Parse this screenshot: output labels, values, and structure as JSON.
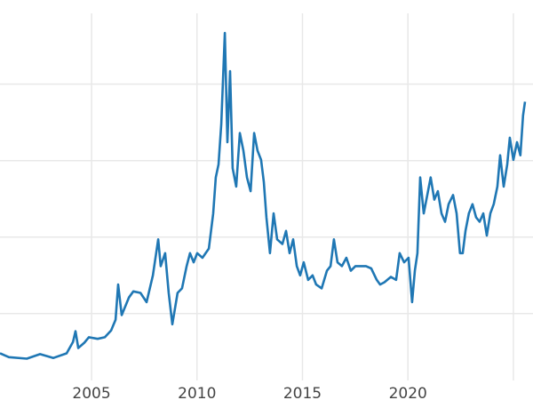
{
  "chart_data": {
    "type": "line",
    "title": "",
    "xlabel": "",
    "ylabel": "",
    "xlim": [
      2000.66,
      2025.93
    ],
    "ylim": [
      -1.3,
      51.0
    ],
    "grid": true,
    "legend": "none",
    "x_ticks": [
      2005,
      2010,
      2015,
      2020,
      2025
    ],
    "x_tick_labels": [
      "2005",
      "2010",
      "2015",
      "2020",
      ""
    ],
    "y_gridlines": [
      10,
      20,
      30,
      40
    ],
    "line_color": "#1f77b4",
    "grid_color": "#e8e8e8",
    "series": [
      {
        "x": [
          2000.66,
          2001.08,
          2001.93,
          2002.56,
          2003.19,
          2003.82,
          2004.12,
          2004.24,
          2004.37,
          2004.66,
          2004.87,
          2005.29,
          2005.63,
          2005.93,
          2006.14,
          2006.26,
          2006.43,
          2006.77,
          2006.98,
          2007.32,
          2007.61,
          2007.91,
          2008.16,
          2008.28,
          2008.49,
          2008.66,
          2008.83,
          2009.08,
          2009.29,
          2009.51,
          2009.67,
          2009.84,
          2010.01,
          2010.26,
          2010.56,
          2010.77,
          2010.89,
          2011.02,
          2011.15,
          2011.32,
          2011.44,
          2011.57,
          2011.69,
          2011.86,
          2012.03,
          2012.2,
          2012.37,
          2012.54,
          2012.71,
          2012.87,
          2013.04,
          2013.17,
          2013.29,
          2013.46,
          2013.63,
          2013.8,
          2014.05,
          2014.22,
          2014.39,
          2014.56,
          2014.73,
          2014.89,
          2015.06,
          2015.27,
          2015.48,
          2015.65,
          2015.91,
          2016.16,
          2016.33,
          2016.49,
          2016.66,
          2016.87,
          2017.08,
          2017.29,
          2017.51,
          2017.76,
          2018.01,
          2018.26,
          2018.52,
          2018.68,
          2018.89,
          2019.19,
          2019.44,
          2019.61,
          2019.82,
          2020.03,
          2020.2,
          2020.33,
          2020.45,
          2020.58,
          2020.75,
          2020.92,
          2021.08,
          2021.25,
          2021.42,
          2021.59,
          2021.76,
          2021.93,
          2022.14,
          2022.31,
          2022.47,
          2022.6,
          2022.73,
          2022.89,
          2023.06,
          2023.23,
          2023.4,
          2023.57,
          2023.74,
          2023.91,
          2024.07,
          2024.24,
          2024.37,
          2024.54,
          2024.71,
          2024.83,
          2025.0,
          2025.17,
          2025.33,
          2025.46,
          2025.55
        ],
        "y": [
          4.8,
          4.3,
          4.1,
          4.7,
          4.2,
          4.8,
          6.3,
          7.7,
          5.5,
          6.2,
          6.9,
          6.7,
          6.9,
          7.8,
          9.2,
          13.8,
          9.8,
          12.1,
          12.9,
          12.7,
          11.5,
          15.0,
          19.7,
          16.2,
          17.9,
          12.7,
          8.6,
          12.7,
          13.3,
          16.2,
          17.9,
          16.7,
          17.9,
          17.3,
          18.5,
          23.1,
          27.8,
          29.5,
          34.8,
          46.7,
          32.4,
          41.7,
          29.0,
          26.6,
          33.6,
          31.3,
          27.8,
          26.0,
          33.6,
          31.3,
          30.1,
          27.2,
          22.6,
          17.9,
          23.1,
          19.7,
          19.1,
          20.8,
          17.9,
          19.7,
          16.2,
          15.0,
          16.7,
          14.4,
          15.0,
          13.8,
          13.3,
          15.6,
          16.2,
          19.7,
          16.7,
          16.2,
          17.3,
          15.6,
          16.2,
          16.2,
          16.2,
          15.9,
          14.4,
          13.8,
          14.1,
          14.8,
          14.4,
          17.9,
          16.7,
          17.3,
          11.5,
          15.6,
          17.9,
          27.8,
          23.1,
          25.5,
          27.8,
          24.9,
          26.0,
          23.1,
          22.0,
          24.3,
          25.5,
          23.1,
          17.9,
          17.9,
          20.8,
          23.1,
          24.3,
          22.6,
          22.0,
          23.1,
          20.2,
          23.1,
          24.3,
          26.6,
          30.7,
          26.6,
          29.5,
          33.0,
          30.1,
          32.4,
          30.7,
          35.9,
          37.7
        ]
      }
    ]
  }
}
